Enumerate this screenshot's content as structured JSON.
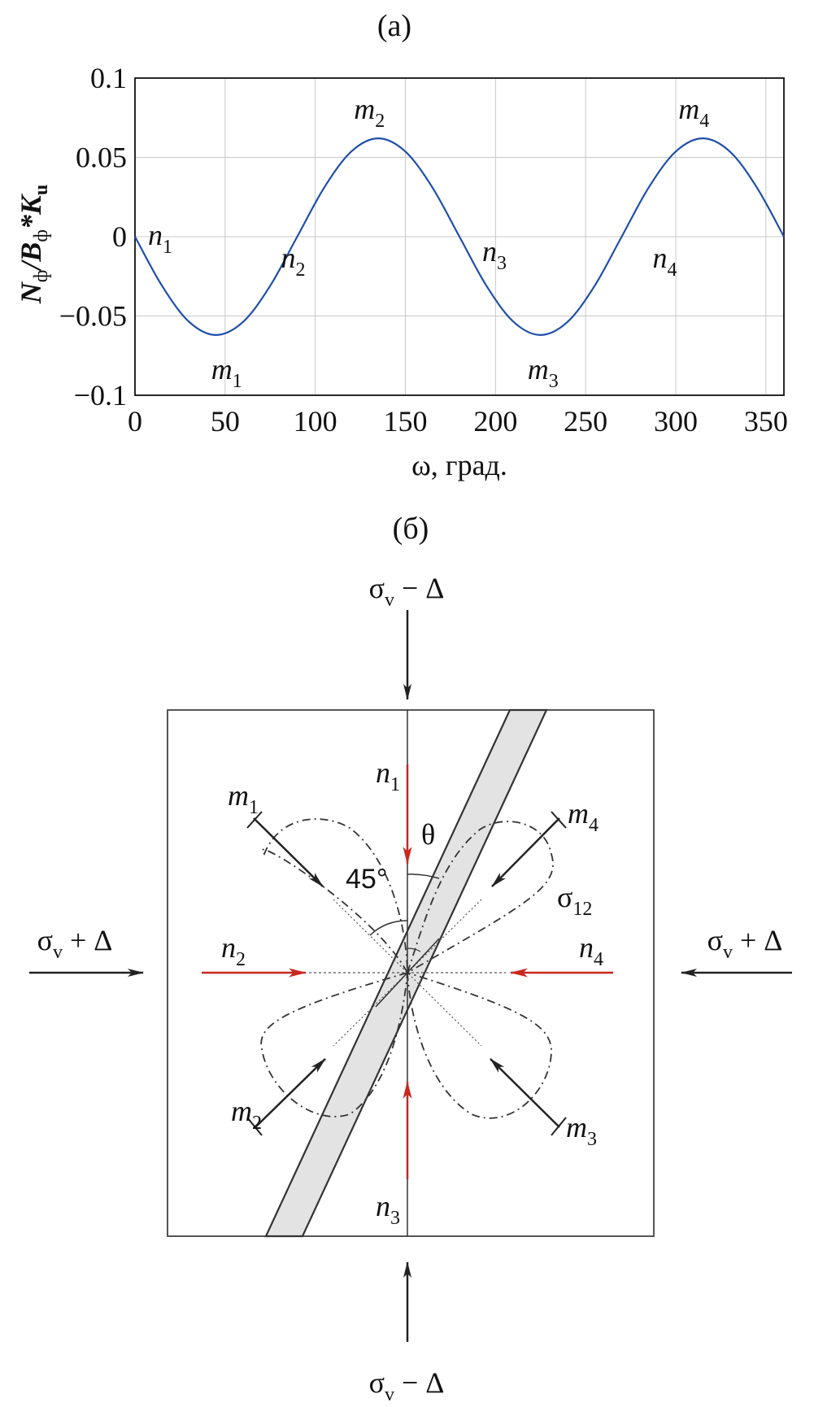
{
  "panel_a": {
    "label": "(а)"
  },
  "panel_b": {
    "label": "(б)"
  },
  "chart_data": {
    "type": "line",
    "title": "",
    "xlabel": "ω, град.",
    "ylabel": "N_ф/B_ф*K_u",
    "xlim": [
      0,
      360
    ],
    "ylim": [
      -0.1,
      0.1
    ],
    "xticks": [
      "0",
      "50",
      "100",
      "150",
      "200",
      "250",
      "300",
      "350"
    ],
    "yticks": [
      "0.1",
      "0.05",
      "0",
      "−0.05",
      "−0.1"
    ],
    "grid": true,
    "line_color": "#1f4fa8",
    "series": [
      {
        "x": [
          0,
          15,
          30,
          45,
          60,
          75,
          90,
          105,
          120,
          135,
          150,
          165,
          180,
          195,
          210,
          225,
          240,
          255,
          270,
          285,
          300,
          315,
          330,
          345,
          360
        ],
        "values": [
          0,
          -0.031,
          -0.0537,
          -0.062,
          -0.0537,
          -0.031,
          0,
          0.031,
          0.0537,
          0.062,
          0.0537,
          0.031,
          0,
          -0.031,
          -0.0537,
          -0.062,
          -0.0537,
          -0.031,
          0,
          0.031,
          0.0537,
          0.062,
          0.0537,
          0.031,
          0
        ]
      }
    ],
    "annotations": [
      {
        "text": "n",
        "sub": "1",
        "x": 0,
        "y": 0
      },
      {
        "text": "n",
        "sub": "2",
        "x": 90,
        "y": 0
      },
      {
        "text": "n",
        "sub": "3",
        "x": 180,
        "y": 0
      },
      {
        "text": "n",
        "sub": "4",
        "x": 270,
        "y": 0
      },
      {
        "text": "m",
        "sub": "1",
        "x": 45,
        "y": -0.062
      },
      {
        "text": "m",
        "sub": "2",
        "x": 135,
        "y": 0.062
      },
      {
        "text": "m",
        "sub": "3",
        "x": 225,
        "y": -0.062
      },
      {
        "text": "m",
        "sub": "4",
        "x": 315,
        "y": 0.062
      }
    ]
  },
  "diagram": {
    "top_stress": "σ",
    "top_stress_sub": "v",
    "top_stress_rest": " − Δ",
    "bottom_stress": "σ",
    "bottom_stress_sub": "v",
    "bottom_stress_rest": " − Δ",
    "left_stress": "σ",
    "left_stress_sub": "v",
    "left_stress_rest": " + Δ",
    "right_stress": "σ",
    "right_stress_sub": "v",
    "right_stress_rest": " + Δ",
    "theta": "θ",
    "angle": "45°",
    "sigma12": "σ",
    "sigma12_sub": "12",
    "labels": {
      "n": "n",
      "m": "m",
      "s1": "1",
      "s2": "2",
      "s3": "3",
      "s4": "4"
    },
    "colors": {
      "red_arrow": "#c8281e",
      "band_fill": "#e3e3e3",
      "ink": "#222222"
    }
  }
}
